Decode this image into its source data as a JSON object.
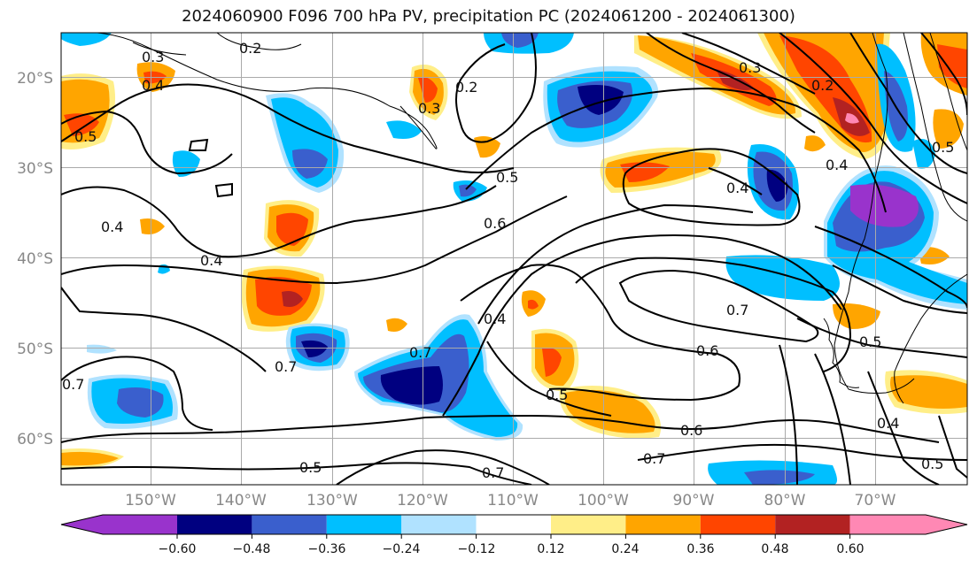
{
  "title": "2024060900 F096 700 hPa PV, precipitation PC (2024061200 - 2024061300)",
  "map": {
    "lon_labels": [
      "150°W",
      "140°W",
      "130°W",
      "120°W",
      "110°W",
      "100°W",
      "90°W",
      "80°W",
      "70°W"
    ],
    "lat_labels": [
      "20°S",
      "30°S",
      "40°S",
      "50°S",
      "60°S"
    ],
    "contour_labels": [
      "0.2",
      "0.3",
      "0.4",
      "0.5",
      "0.2",
      "0.3",
      "0.3",
      "0.2",
      "0.5",
      "0.6",
      "0.4",
      "0.4",
      "0.4",
      "0.4",
      "0.7",
      "0.7",
      "0.4",
      "0.5",
      "0.7",
      "0.6",
      "0.5",
      "0.6",
      "0.7",
      "0.7",
      "0.5",
      "0.7",
      "0.5",
      "0.4",
      "0.5"
    ]
  },
  "colorbar": {
    "ticks": [
      "−0.60",
      "−0.48",
      "−0.36",
      "−0.24",
      "−0.12",
      "0.12",
      "0.24",
      "0.36",
      "0.48",
      "0.60"
    ],
    "colors": [
      "#9933cc",
      "#000080",
      "#3a5fcd",
      "#00bfff",
      "#b0e2ff",
      "#ffffff",
      "#ffee88",
      "#ffa500",
      "#ff4500",
      "#b22222",
      "#ff88b4"
    ]
  }
}
